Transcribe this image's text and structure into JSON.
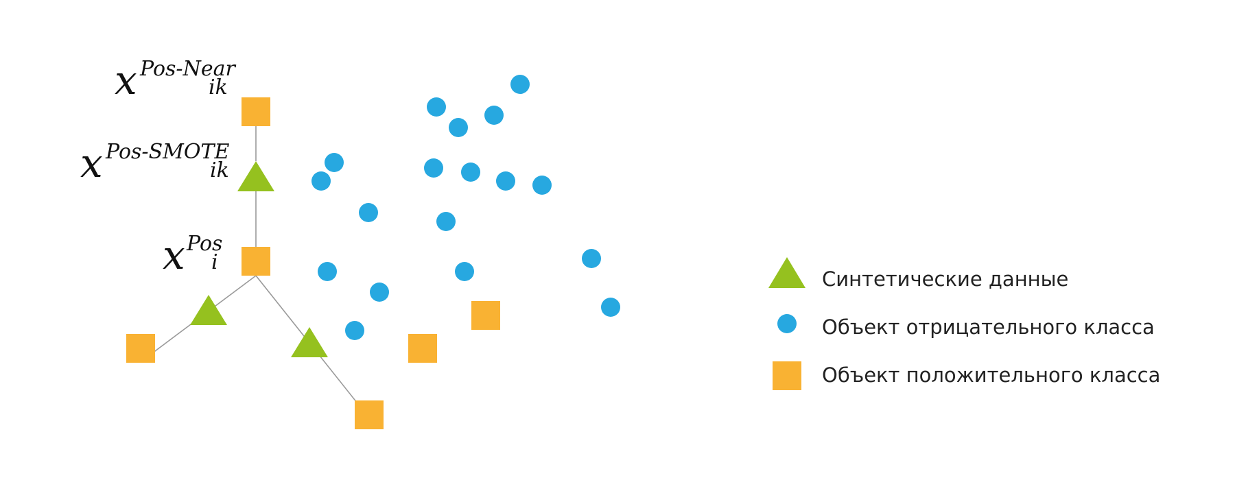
{
  "colors": {
    "positive": "#f9b233",
    "negative": "#27a8e0",
    "synthetic": "#95c11f",
    "edge": "#9a9a9a"
  },
  "labels": {
    "near": {
      "base": "x",
      "sup": "Pos-Near",
      "sub": "ik"
    },
    "smote": {
      "base": "x",
      "sup": "Pos-SMOTE",
      "sub": "ik"
    },
    "pos": {
      "base": "x",
      "sup": "Pos",
      "sub": "i"
    }
  },
  "legend": {
    "synthetic": {
      "icon": "triangle-icon",
      "label": "Синтетические данные"
    },
    "negative": {
      "icon": "circle-icon",
      "label": "Объект отрицательного класса"
    },
    "positive": {
      "icon": "square-icon",
      "label": "Объект положительного класса"
    }
  }
}
